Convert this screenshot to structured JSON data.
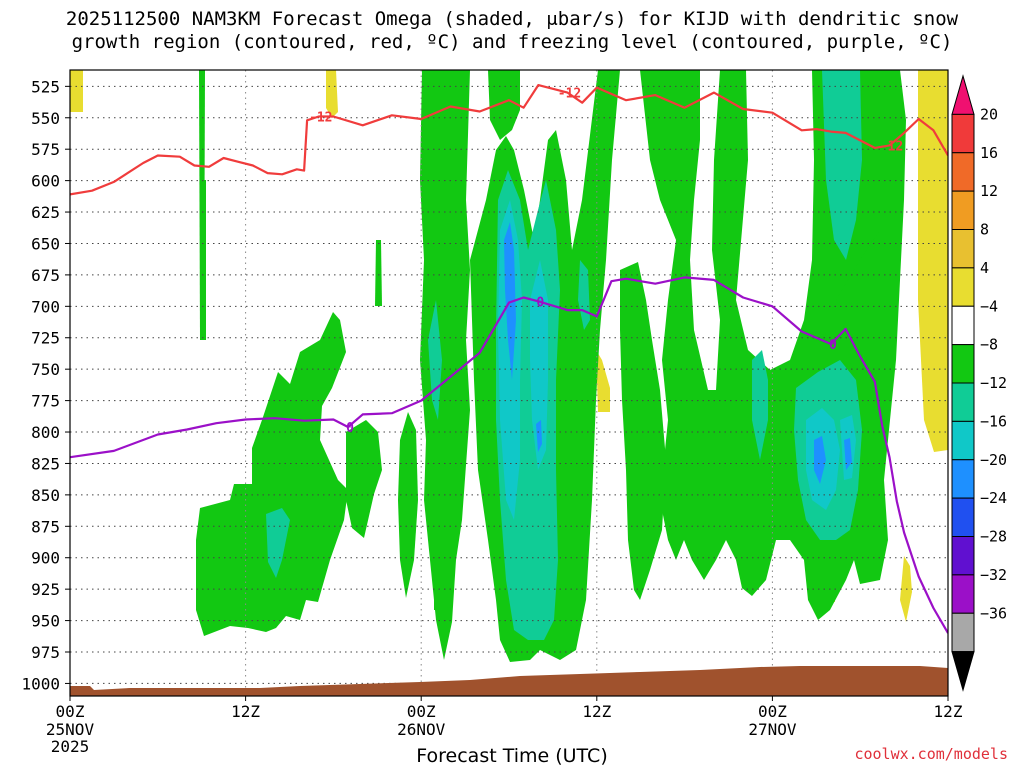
{
  "title": {
    "line1": "2025112500 NAM3KM Forecast Omega (shaded, μbar/s) for KIJD with dendritic snow",
    "line2": "growth region (contoured, red, ºC) and freezing level (contoured, purple, ºC)"
  },
  "xaxis_title": "Forecast Time (UTC)",
  "credit": "coolwx.com/models",
  "chart_data": {
    "type": "heatmap",
    "x_unit": "forecast hour",
    "xlim": [
      0,
      60
    ],
    "x_ticks": [
      {
        "hour": 0,
        "label": "00Z",
        "sub1": "25NOV",
        "sub2": "2025"
      },
      {
        "hour": 12,
        "label": "12Z",
        "sub1": "",
        "sub2": ""
      },
      {
        "hour": 24,
        "label": "00Z",
        "sub1": "26NOV",
        "sub2": ""
      },
      {
        "hour": 36,
        "label": "12Z",
        "sub1": "",
        "sub2": ""
      },
      {
        "hour": 48,
        "label": "00Z",
        "sub1": "27NOV",
        "sub2": ""
      },
      {
        "hour": 60,
        "label": "12Z",
        "sub1": "",
        "sub2": ""
      }
    ],
    "y_unit": "hPa",
    "ylim": [
      1010,
      512
    ],
    "y_ticks": [
      525,
      550,
      575,
      600,
      625,
      650,
      675,
      700,
      725,
      750,
      775,
      800,
      825,
      850,
      875,
      900,
      925,
      950,
      975,
      1000
    ],
    "grid": true,
    "colorbar": {
      "labels": [
        "20",
        "16",
        "12",
        "8",
        "4",
        "−4",
        "−8",
        "−12",
        "−16",
        "−20",
        "−24",
        "−28",
        "−32",
        "−36"
      ],
      "colors": [
        "#f01070",
        "#f03a3a",
        "#f06a28",
        "#f09c22",
        "#e8c030",
        "#e8dd30",
        "#ffffff",
        "#12c812",
        "#10cc96",
        "#10c8c8",
        "#1e90ff",
        "#2050f0",
        "#6010d0",
        "#9b10c8",
        "#a8a8a8",
        "#000000"
      ]
    },
    "omega_colors": {
      "weak_rise": "#12c812",
      "moderate_rise": "#10cc96",
      "strong_rise": "#10c8c8",
      "strongest_rise": "#1e90ff",
      "sinking": "#e8dd30"
    },
    "series": [
      {
        "name": "",
        "color": "#f03c3c",
        "contour_label": "-12",
        "x": [
          0,
          1.5,
          3,
          5,
          6,
          7.5,
          8.5,
          9.5,
          10.5,
          11.5,
          12.5,
          13.5,
          14.5,
          15.5,
          16,
          16.2,
          17,
          18,
          20,
          22,
          24,
          26,
          28,
          30,
          31,
          32,
          34,
          35,
          36,
          38,
          40,
          42,
          44,
          46,
          48,
          50,
          51,
          52,
          53,
          55,
          56,
          57,
          58,
          59,
          60
        ],
        "y": [
          611,
          608,
          601,
          586,
          580,
          581,
          588,
          589,
          582,
          585,
          588,
          594,
          595,
          591,
          592,
          552,
          549,
          549,
          556,
          548,
          551,
          541,
          545,
          536,
          542,
          524,
          530,
          538,
          526,
          536,
          532,
          542,
          530,
          543,
          546,
          560,
          559,
          561,
          562,
          574,
          572,
          562,
          551,
          560,
          580
        ]
      },
      {
        "name": "",
        "color": "#9b10c8",
        "contour_label": "0",
        "x": [
          0,
          3,
          6,
          8,
          10,
          12,
          14,
          16,
          18,
          19,
          20,
          22,
          24,
          26,
          28,
          30,
          31,
          32,
          34,
          35,
          36,
          37,
          38,
          40,
          42,
          44,
          46,
          48,
          50,
          51,
          52,
          53,
          54,
          55,
          55.5,
          56,
          56.5,
          57,
          58,
          59,
          60
        ],
        "y": [
          820,
          815,
          802,
          798,
          793,
          790,
          789,
          791,
          790,
          796,
          786,
          785,
          775,
          756,
          737,
          697,
          693,
          696,
          703,
          703,
          708,
          680,
          678,
          682,
          677,
          679,
          693,
          700,
          720,
          725,
          730,
          718,
          740,
          760,
          795,
          820,
          855,
          880,
          915,
          940,
          960
        ]
      }
    ]
  }
}
